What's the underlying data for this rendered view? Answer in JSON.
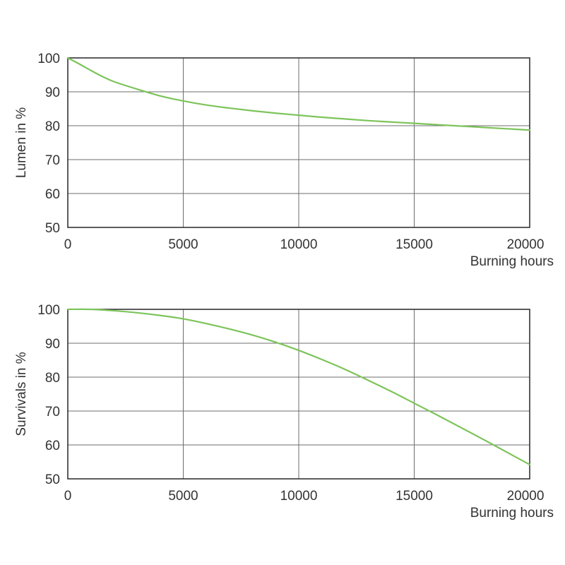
{
  "chart_data": [
    {
      "type": "line",
      "title": "",
      "xlabel": "Burning hours",
      "ylabel": "Lumen in %",
      "xlim": [
        0,
        20000
      ],
      "ylim": [
        50,
        100
      ],
      "x_ticks": [
        0,
        5000,
        10000,
        15000,
        20000
      ],
      "y_ticks": [
        50,
        60,
        70,
        80,
        90,
        100
      ],
      "grid": true,
      "color": "#7dc45a",
      "series": [
        {
          "x": [
            0,
            500,
            1000,
            1500,
            2000,
            3000,
            4000,
            5000,
            6000,
            7000,
            8000,
            9000,
            10000,
            11000,
            12000,
            13000,
            14000,
            15000,
            16000,
            17000,
            18000,
            19000,
            20000
          ],
          "values": [
            100,
            98.2,
            96.3,
            94.5,
            93,
            90.8,
            88.8,
            87.3,
            86.1,
            85.2,
            84.4,
            83.7,
            83.1,
            82.5,
            82,
            81.5,
            81.1,
            80.7,
            80.3,
            79.9,
            79.5,
            79.1,
            78.7
          ]
        }
      ]
    },
    {
      "type": "line",
      "title": "",
      "xlabel": "Burning hours",
      "ylabel": "Survivals in %",
      "xlim": [
        0,
        20000
      ],
      "ylim": [
        50,
        100
      ],
      "x_ticks": [
        0,
        5000,
        10000,
        15000,
        20000
      ],
      "y_ticks": [
        50,
        60,
        70,
        80,
        90,
        100
      ],
      "grid": true,
      "color": "#7dc45a",
      "series": [
        {
          "x": [
            0,
            1000,
            2000,
            3000,
            4000,
            5000,
            6000,
            7000,
            8000,
            9000,
            10000,
            11000,
            12000,
            13000,
            14000,
            15000,
            16000,
            17000,
            18000,
            19000,
            20000
          ],
          "values": [
            100,
            100,
            99.6,
            99,
            98.2,
            97.2,
            95.8,
            94.2,
            92.4,
            90.3,
            87.9,
            85.2,
            82.3,
            79.1,
            75.8,
            72.3,
            68.8,
            65.2,
            61.6,
            57.9,
            54.2
          ]
        }
      ]
    }
  ]
}
